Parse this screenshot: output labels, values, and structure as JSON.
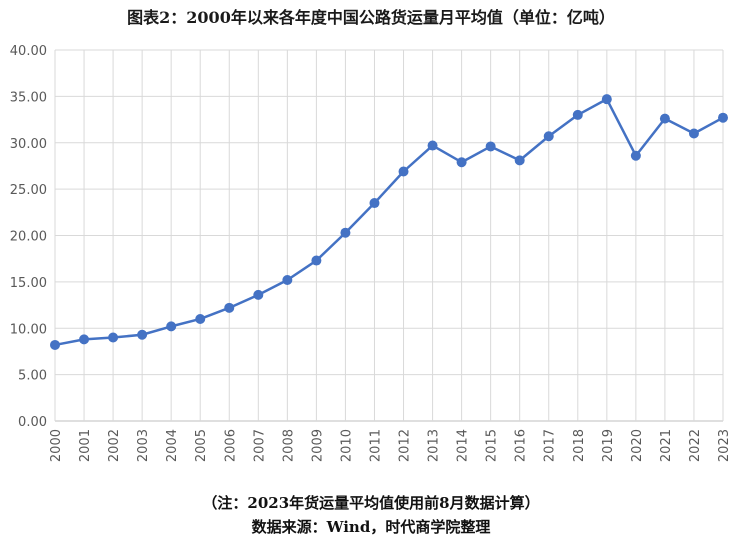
{
  "title": "图表2：2000年以来各年度中国公路货运量月平均值（单位：亿吨）",
  "footnote": "（注：2023年货运量平均值使用前8月数据计算）",
  "source": "数据来源：Wind，时代商学院整理",
  "chart_data": {
    "type": "line",
    "title": "图表2：2000年以来各年度中国公路货运量月平均值（单位：亿吨）",
    "xlabel": "",
    "ylabel": "",
    "ylim": [
      0,
      40
    ],
    "yticks": [
      "0.00",
      "5.00",
      "10.00",
      "15.00",
      "20.00",
      "25.00",
      "30.00",
      "35.00",
      "40.00"
    ],
    "grid": true,
    "legend": "none",
    "categories": [
      "2000",
      "2001",
      "2002",
      "2003",
      "2004",
      "2005",
      "2006",
      "2007",
      "2008",
      "2009",
      "2010",
      "2011",
      "2012",
      "2013",
      "2014",
      "2015",
      "2016",
      "2017",
      "2018",
      "2019",
      "2020",
      "2021",
      "2022",
      "2023"
    ],
    "series": [
      {
        "name": "",
        "color": "#4472C4",
        "values": [
          8.2,
          8.8,
          9.0,
          9.3,
          10.2,
          11.0,
          12.2,
          13.6,
          15.2,
          17.3,
          20.3,
          23.5,
          26.9,
          29.7,
          27.9,
          29.6,
          28.1,
          30.7,
          33.0,
          34.7,
          28.6,
          32.6,
          31.0,
          32.7
        ]
      }
    ]
  }
}
